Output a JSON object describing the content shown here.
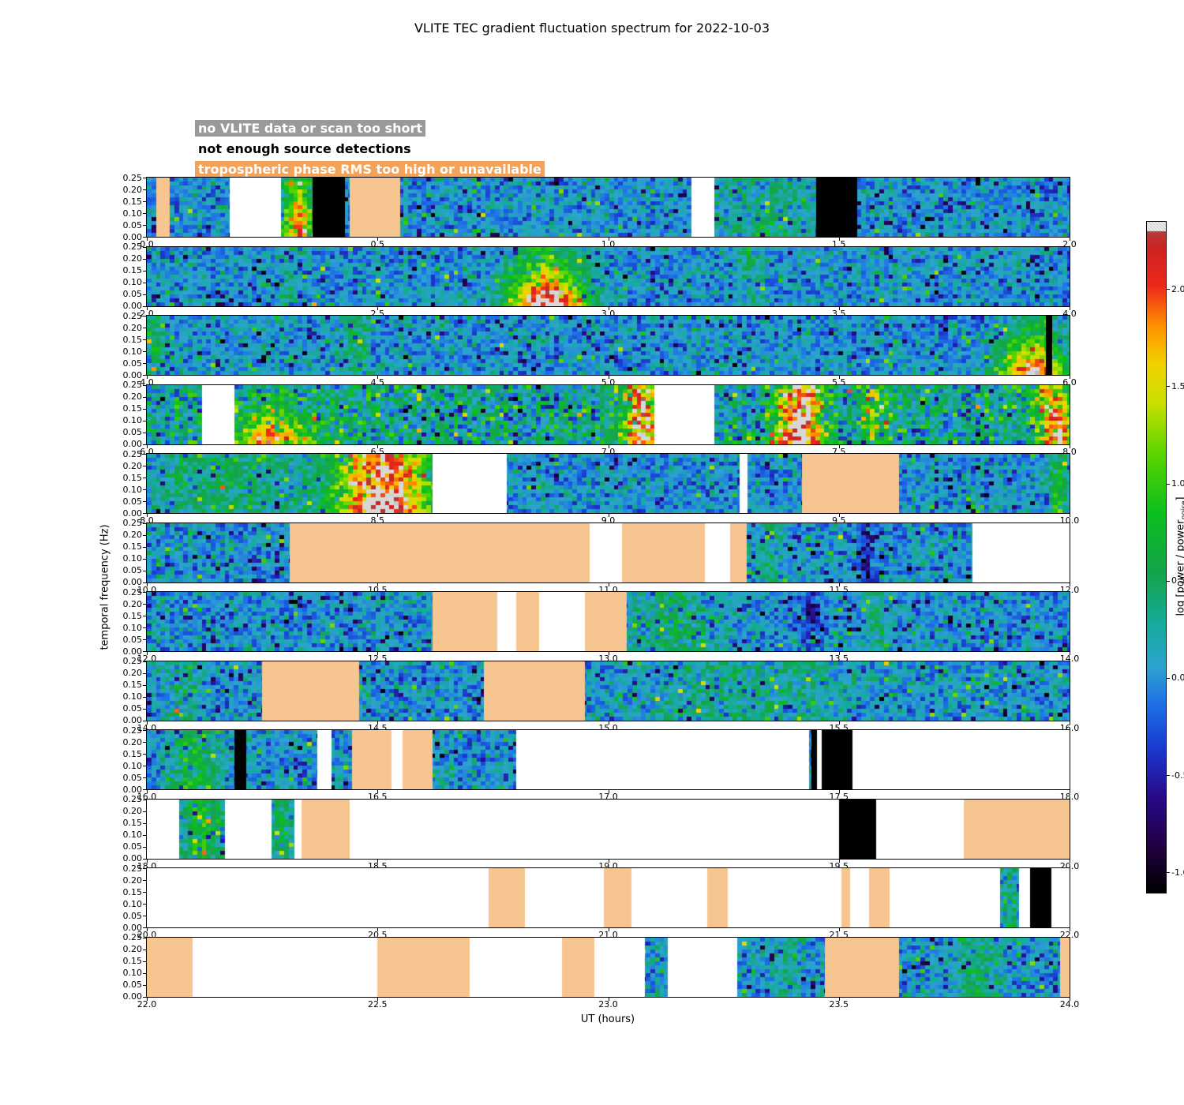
{
  "title": "VLITE TEC gradient fluctuation spectrum for 2022-10-03",
  "legend": {
    "items": [
      {
        "label": "no VLITE data or scan too short",
        "text_color": "#ffffff",
        "bg_color": "#999999",
        "mask_type": "white"
      },
      {
        "label": "not enough source detections",
        "text_color": "#000000",
        "bg_color": "#ffffff",
        "mask_type": "black"
      },
      {
        "label": "tropospheric phase RMS too high or unavailable",
        "text_color": "#ffffff",
        "bg_color": "#f2a359",
        "mask_type": "orange"
      }
    ]
  },
  "axes": {
    "y_label": "temporal frequency (Hz)",
    "x_label": "UT (hours)",
    "y_ticks": [
      "0.00",
      "0.05",
      "0.10",
      "0.15",
      "0.20",
      "0.25"
    ]
  },
  "colorbar": {
    "label_prefix": "log [power / power",
    "label_sub": "noise",
    "label_suffix": "]",
    "tick_labels": [
      "2.0",
      "1.5",
      "1.0",
      "0.5",
      "0.0",
      "-0.5",
      "-1.0"
    ],
    "tick_values": [
      2.0,
      1.5,
      1.0,
      0.5,
      0.0,
      -0.5,
      -1.0
    ],
    "range": [
      -1.1,
      2.35
    ]
  },
  "mask_colors": {
    "white": "#ffffff",
    "black": "#000000",
    "orange": "#f7c58f"
  },
  "chart_data": {
    "type": "heatmap",
    "title": "VLITE TEC gradient fluctuation spectrum for 2022-10-03",
    "xlabel": "UT (hours)",
    "ylabel": "temporal frequency (Hz)",
    "x_range_hours": [
      0,
      24
    ],
    "y_range_hz": [
      0.0,
      0.25
    ],
    "value_scale": "log10(power / power_noise)",
    "value_range": [
      -1.0,
      2.3
    ],
    "panels": [
      {
        "ut_start": 0,
        "ut_end": 2,
        "x_tick_labels": [
          "0.0",
          "0.5",
          "1.0",
          "1.5",
          "2.0"
        ],
        "base": "calm",
        "masks": [
          {
            "type": "orange",
            "from": 0.02,
            "to": 0.05
          },
          {
            "type": "white",
            "from": 0.18,
            "to": 0.29
          },
          {
            "type": "black",
            "from": 0.36,
            "to": 0.43
          },
          {
            "type": "orange",
            "from": 0.44,
            "to": 0.55
          },
          {
            "type": "white",
            "from": 1.18,
            "to": 1.23
          },
          {
            "type": "black",
            "from": 1.45,
            "to": 1.54
          }
        ],
        "hotspots": [
          {
            "from": 0.29,
            "to": 0.37,
            "add": 1.0
          },
          {
            "from": 0.3,
            "to": 0.35,
            "add": 0.9,
            "bottom": true
          },
          {
            "from": 1.25,
            "to": 1.45,
            "add": 0.4
          }
        ]
      },
      {
        "ut_start": 2,
        "ut_end": 4,
        "x_tick_labels": [
          "2.0",
          "2.5",
          "3.0",
          "3.5",
          "4.0"
        ],
        "base": "calm",
        "masks": [],
        "hotspots": [
          {
            "from": 2.78,
            "to": 2.96,
            "add": 1.3,
            "bottom": true
          },
          {
            "from": 2.8,
            "to": 2.93,
            "add": 0.7
          },
          {
            "from": 3.28,
            "to": 3.34,
            "add": 0.35
          },
          {
            "from": 2.29,
            "to": 2.33,
            "add": 0.3
          }
        ]
      },
      {
        "ut_start": 4,
        "ut_end": 6,
        "x_tick_labels": [
          "4.0",
          "4.5",
          "5.0",
          "5.5",
          "6.0"
        ],
        "base": "calm",
        "masks": [
          {
            "type": "black",
            "from": 5.948,
            "to": 5.962
          }
        ],
        "hotspots": [
          {
            "from": 4.0,
            "to": 4.04,
            "add": 0.5
          },
          {
            "from": 4.42,
            "to": 4.48,
            "add": 0.55
          },
          {
            "from": 5.84,
            "to": 5.99,
            "add": 1.2,
            "bottom": true
          },
          {
            "from": 5.87,
            "to": 5.99,
            "add": 0.45
          }
        ]
      },
      {
        "ut_start": 6,
        "ut_end": 8,
        "x_tick_labels": [
          "6.0",
          "6.5",
          "7.0",
          "7.5",
          "8.0"
        ],
        "base": "active",
        "masks": [
          {
            "type": "white",
            "from": 6.12,
            "to": 6.19
          },
          {
            "type": "white",
            "from": 7.1,
            "to": 7.23
          }
        ],
        "hotspots": [
          {
            "from": 6.19,
            "to": 6.36,
            "add": 1.1,
            "bottom": true
          },
          {
            "from": 7.03,
            "to": 7.11,
            "add": 1.9
          },
          {
            "from": 7.36,
            "to": 7.47,
            "add": 2.0
          },
          {
            "from": 7.38,
            "to": 7.45,
            "add": 0.5,
            "bottom": true
          },
          {
            "from": 7.54,
            "to": 7.61,
            "add": 0.8
          },
          {
            "from": 7.92,
            "to": 8.0,
            "add": 1.5
          },
          {
            "from": 7.97,
            "to": 8.0,
            "add": 0.7,
            "bottom": true
          }
        ]
      },
      {
        "ut_start": 8,
        "ut_end": 10,
        "x_tick_labels": [
          "8.0",
          "8.5",
          "9.0",
          "9.5",
          "10.0"
        ],
        "base": "calm",
        "masks": [
          {
            "type": "white",
            "from": 8.62,
            "to": 8.78
          },
          {
            "type": "white",
            "from": 9.285,
            "to": 9.302
          },
          {
            "type": "orange",
            "from": 9.42,
            "to": 9.63
          }
        ],
        "hotspots": [
          {
            "from": 8.02,
            "to": 8.32,
            "add": 0.5
          },
          {
            "from": 8.4,
            "to": 8.62,
            "add": 2.0
          },
          {
            "from": 8.44,
            "to": 8.6,
            "add": 0.5,
            "bottom": true
          },
          {
            "from": 9.95,
            "to": 10.0,
            "add": 0.7
          }
        ]
      },
      {
        "ut_start": 10,
        "ut_end": 12,
        "x_tick_labels": [
          "10.0",
          "10.5",
          "11.0",
          "11.5",
          "12.0"
        ],
        "base": "calm",
        "masks": [
          {
            "type": "orange",
            "from": 10.31,
            "to": 10.96
          },
          {
            "type": "white",
            "from": 10.96,
            "to": 11.03
          },
          {
            "type": "orange",
            "from": 11.03,
            "to": 11.21
          },
          {
            "type": "white",
            "from": 11.21,
            "to": 11.265
          },
          {
            "type": "orange",
            "from": 11.265,
            "to": 11.3
          },
          {
            "type": "white",
            "from": 11.79,
            "to": 12.0
          }
        ],
        "hotspots": [
          {
            "from": 11.54,
            "to": 11.58,
            "add": -0.6
          },
          {
            "from": 11.33,
            "to": 11.38,
            "add": 0.35
          }
        ]
      },
      {
        "ut_start": 12,
        "ut_end": 14,
        "x_tick_labels": [
          "12.0",
          "12.5",
          "13.0",
          "13.5",
          "14.0"
        ],
        "base": "calm",
        "masks": [
          {
            "type": "orange",
            "from": 12.62,
            "to": 12.76
          },
          {
            "type": "white",
            "from": 12.76,
            "to": 12.8
          },
          {
            "type": "orange",
            "from": 12.8,
            "to": 12.85
          },
          {
            "type": "white",
            "from": 12.85,
            "to": 12.95
          },
          {
            "type": "orange",
            "from": 12.95,
            "to": 13.04
          }
        ],
        "hotspots": [
          {
            "from": 13.05,
            "to": 13.25,
            "add": 0.4
          },
          {
            "from": 13.42,
            "to": 13.46,
            "add": -0.55
          },
          {
            "from": 13.55,
            "to": 13.62,
            "add": 0.3
          }
        ]
      },
      {
        "ut_start": 14,
        "ut_end": 16,
        "x_tick_labels": [
          "14.0",
          "14.5",
          "15.0",
          "15.5",
          "16.0"
        ],
        "base": "calm",
        "masks": [
          {
            "type": "orange",
            "from": 14.25,
            "to": 14.46
          },
          {
            "type": "orange",
            "from": 14.73,
            "to": 14.95
          }
        ],
        "hotspots": [
          {
            "from": 14.05,
            "to": 14.12,
            "add": 0.35
          },
          {
            "from": 15.05,
            "to": 15.55,
            "add": 0.3
          }
        ]
      },
      {
        "ut_start": 16,
        "ut_end": 18,
        "x_tick_labels": [
          "16.0",
          "16.5",
          "17.0",
          "17.5",
          "18.0"
        ],
        "base": "calm",
        "masks": [
          {
            "type": "black",
            "from": 16.19,
            "to": 16.215
          },
          {
            "type": "white",
            "from": 16.37,
            "to": 16.4
          },
          {
            "type": "orange",
            "from": 16.445,
            "to": 16.53
          },
          {
            "type": "white",
            "from": 16.53,
            "to": 16.555
          },
          {
            "type": "orange",
            "from": 16.555,
            "to": 16.62
          },
          {
            "type": "white",
            "from": 16.8,
            "to": 17.435
          },
          {
            "type": "black",
            "from": 17.44,
            "to": 17.452
          },
          {
            "type": "white",
            "from": 17.452,
            "to": 17.462
          },
          {
            "type": "black",
            "from": 17.462,
            "to": 17.53
          },
          {
            "type": "white",
            "from": 17.53,
            "to": 18.0
          }
        ],
        "hotspots": [
          {
            "from": 16.05,
            "to": 16.16,
            "add": 0.6
          }
        ]
      },
      {
        "ut_start": 18,
        "ut_end": 20,
        "x_tick_labels": [
          "18.0",
          "18.5",
          "19.0",
          "19.5",
          "20.0"
        ],
        "base": "calm",
        "masks": [
          {
            "type": "white",
            "from": 18.0,
            "to": 18.07
          },
          {
            "type": "white",
            "from": 18.17,
            "to": 18.27
          },
          {
            "type": "white",
            "from": 18.32,
            "to": 18.335
          },
          {
            "type": "orange",
            "from": 18.335,
            "to": 18.44
          },
          {
            "type": "white",
            "from": 18.44,
            "to": 19.5
          },
          {
            "type": "black",
            "from": 19.5,
            "to": 19.58
          },
          {
            "type": "white",
            "from": 19.58,
            "to": 19.77
          },
          {
            "type": "orange",
            "from": 19.77,
            "to": 20.0
          }
        ],
        "hotspots": [
          {
            "from": 18.08,
            "to": 18.16,
            "add": 0.8
          },
          {
            "from": 18.27,
            "to": 18.32,
            "add": 0.5
          }
        ]
      },
      {
        "ut_start": 20,
        "ut_end": 22,
        "x_tick_labels": [
          "20.0",
          "20.5",
          "21.0",
          "21.5",
          "22.0"
        ],
        "base": "calm",
        "masks": [
          {
            "type": "white",
            "from": 20.0,
            "to": 20.74
          },
          {
            "type": "orange",
            "from": 20.74,
            "to": 20.82
          },
          {
            "type": "white",
            "from": 20.82,
            "to": 20.99
          },
          {
            "type": "orange",
            "from": 20.99,
            "to": 21.05
          },
          {
            "type": "white",
            "from": 21.05,
            "to": 21.215
          },
          {
            "type": "orange",
            "from": 21.215,
            "to": 21.26
          },
          {
            "type": "white",
            "from": 21.26,
            "to": 21.505
          },
          {
            "type": "orange",
            "from": 21.505,
            "to": 21.525
          },
          {
            "type": "white",
            "from": 21.525,
            "to": 21.565
          },
          {
            "type": "orange",
            "from": 21.565,
            "to": 21.61
          },
          {
            "type": "white",
            "from": 21.61,
            "to": 21.85
          },
          {
            "type": "white",
            "from": 21.89,
            "to": 21.915
          },
          {
            "type": "black",
            "from": 21.915,
            "to": 21.96
          },
          {
            "type": "white",
            "from": 21.96,
            "to": 22.0
          }
        ],
        "hotspots": [
          {
            "from": 21.85,
            "to": 21.89,
            "add": 0.5
          }
        ]
      },
      {
        "ut_start": 22,
        "ut_end": 24,
        "x_tick_labels": [
          "22.0",
          "22.5",
          "23.0",
          "23.5",
          "24.0"
        ],
        "base": "calm",
        "masks": [
          {
            "type": "orange",
            "from": 22.0,
            "to": 22.1
          },
          {
            "type": "white",
            "from": 22.1,
            "to": 22.5
          },
          {
            "type": "orange",
            "from": 22.5,
            "to": 22.7
          },
          {
            "type": "white",
            "from": 22.7,
            "to": 22.9
          },
          {
            "type": "orange",
            "from": 22.9,
            "to": 22.97
          },
          {
            "type": "white",
            "from": 22.97,
            "to": 23.08
          },
          {
            "type": "white",
            "from": 23.13,
            "to": 23.28
          },
          {
            "type": "orange",
            "from": 23.47,
            "to": 23.63
          },
          {
            "type": "orange",
            "from": 23.98,
            "to": 24.0
          }
        ],
        "hotspots": [
          {
            "from": 23.35,
            "to": 23.42,
            "add": 0.3
          },
          {
            "from": 23.75,
            "to": 23.85,
            "add": 0.4
          }
        ]
      }
    ]
  }
}
